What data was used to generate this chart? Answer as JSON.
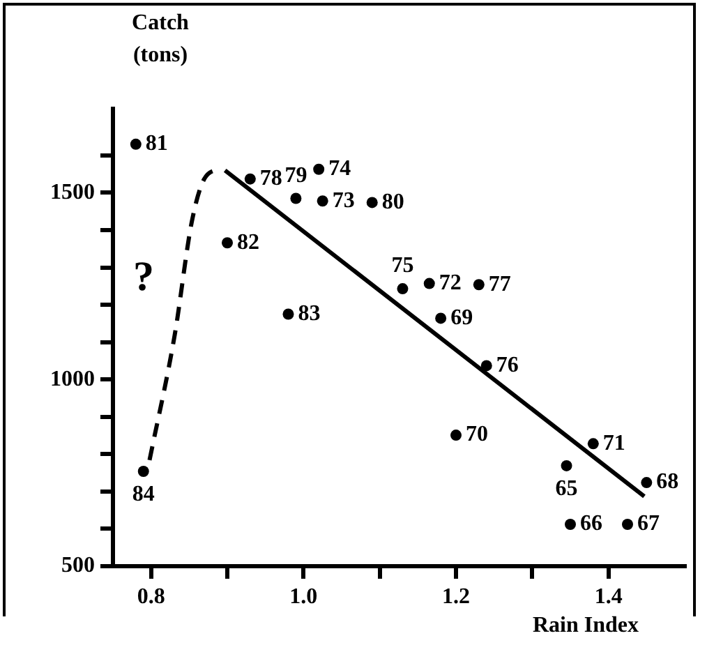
{
  "chart_data": {
    "type": "scatter",
    "title": "Catch",
    "subtitle": "(tons)",
    "xlabel": "Rain Index",
    "xlim": [
      0.75,
      1.5
    ],
    "xticks": [
      {
        "value": 0.8,
        "label": "0.8"
      },
      {
        "value": 0.9,
        "label": null
      },
      {
        "value": 1.0,
        "label": "1.0"
      },
      {
        "value": 1.1,
        "label": null
      },
      {
        "value": 1.2,
        "label": "1.2"
      },
      {
        "value": 1.3,
        "label": null
      },
      {
        "value": 1.4,
        "label": "1.4"
      }
    ],
    "ylim": [
      500,
      1725
    ],
    "yticks": [
      500,
      {
        "value": 600,
        "label": null
      },
      {
        "value": 700,
        "label": null
      },
      {
        "value": 800,
        "label": null
      },
      {
        "value": 900,
        "label": null
      },
      1000,
      {
        "value": 1100,
        "label": null
      },
      {
        "value": 1200,
        "label": null
      },
      {
        "value": 1300,
        "label": null
      },
      {
        "value": 1400,
        "label": null
      },
      1500,
      {
        "value": 1600,
        "label": null
      }
    ],
    "grid": false,
    "legend": false,
    "marker": "circle",
    "series": [
      {
        "type": "scatter",
        "color": "#000000",
        "x": [
          0.78,
          0.93,
          1.02,
          0.99,
          1.025,
          1.09,
          0.9,
          1.13,
          1.165,
          1.23,
          1.18,
          1.24,
          0.98,
          1.2,
          1.38,
          1.345,
          1.45,
          1.35,
          1.425,
          0.79
        ],
        "values": [
          1630,
          1537,
          1563,
          1485,
          1478,
          1474,
          1366,
          1243,
          1257,
          1254,
          1164,
          1037,
          1175,
          851,
          828,
          769,
          724,
          612,
          612,
          754
        ]
      },
      {
        "type": "line",
        "color": "#000000",
        "line_style": "solid",
        "marker": "none",
        "x": [
          0.897,
          1.447
        ],
        "values": [
          1560,
          687
        ]
      },
      {
        "type": "line",
        "color": "#000000",
        "line_style": "dashed",
        "marker": "none",
        "x": [
          0.798,
          0.831,
          0.853,
          0.868,
          0.89
        ],
        "values": [
          784,
          1119,
          1418,
          1530,
          1567
        ]
      }
    ],
    "annotations": [
      {
        "text": "81",
        "x": 0.78,
        "y": 1630
      },
      {
        "text": "78",
        "x": 0.93,
        "y": 1537
      },
      {
        "text": "74",
        "x": 1.02,
        "y": 1563
      },
      {
        "text": "79",
        "x": 0.99,
        "y": 1485
      },
      {
        "text": "73",
        "x": 1.025,
        "y": 1478
      },
      {
        "text": "80",
        "x": 1.09,
        "y": 1474
      },
      {
        "text": "82",
        "x": 0.9,
        "y": 1366
      },
      {
        "text": "75",
        "x": 1.13,
        "y": 1243
      },
      {
        "text": "72",
        "x": 1.165,
        "y": 1257
      },
      {
        "text": "77",
        "x": 1.23,
        "y": 1254
      },
      {
        "text": "69",
        "x": 1.18,
        "y": 1164
      },
      {
        "text": "76",
        "x": 1.24,
        "y": 1037
      },
      {
        "text": "83",
        "x": 0.98,
        "y": 1175
      },
      {
        "text": "70",
        "x": 1.2,
        "y": 851
      },
      {
        "text": "71",
        "x": 1.38,
        "y": 828
      },
      {
        "text": "65",
        "x": 1.345,
        "y": 769
      },
      {
        "text": "68",
        "x": 1.45,
        "y": 724
      },
      {
        "text": "66",
        "x": 1.35,
        "y": 612
      },
      {
        "text": "67",
        "x": 1.425,
        "y": 612
      },
      {
        "text": "84",
        "x": 0.79,
        "y": 754
      },
      "?"
    ]
  }
}
